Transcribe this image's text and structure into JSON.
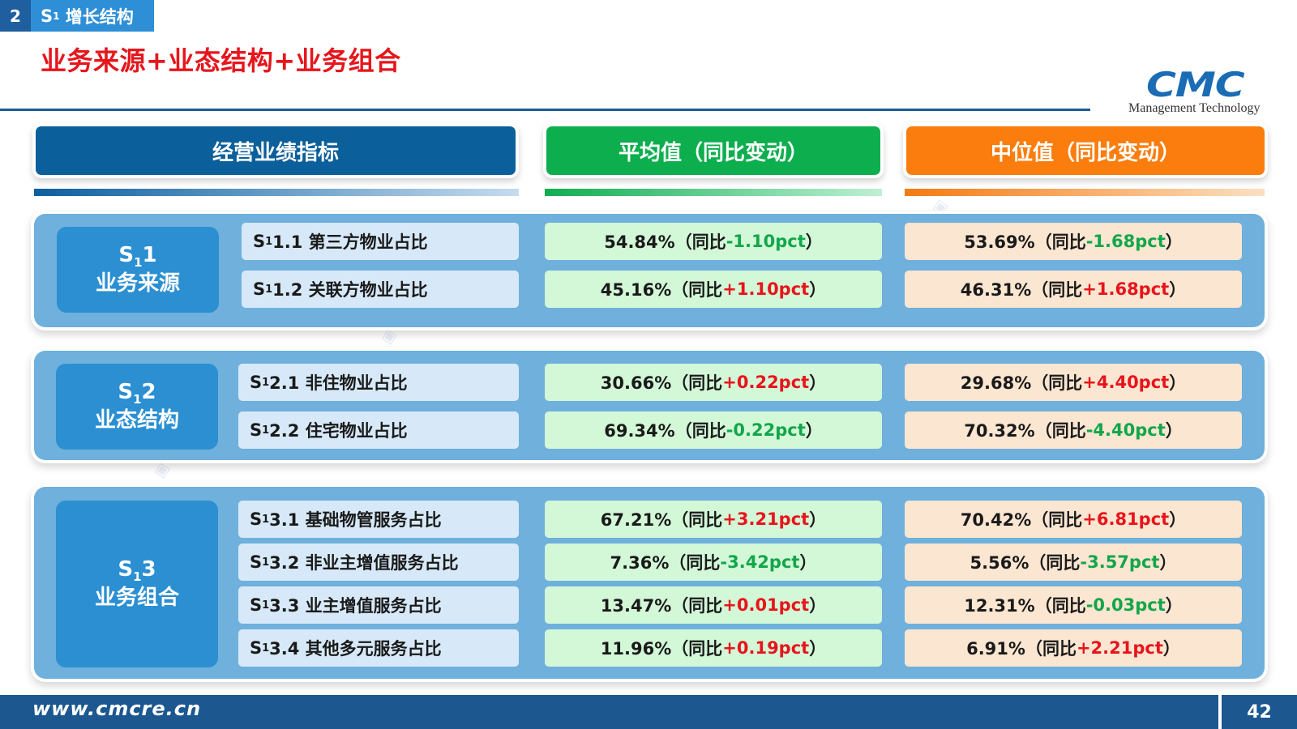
{
  "header": {
    "section_number": "2",
    "section_name_prefix": "S",
    "section_name_sub": "1",
    "section_name_text": " 增长结构",
    "page_title": "业务来源+业态结构+业务组合"
  },
  "logo": {
    "mark": "CMC",
    "subtitle": "Management Technology",
    "color": "#1a6cb5"
  },
  "columns": {
    "indicator": "经营业绩指标",
    "average": "平均值（同比变动）",
    "median": "中位值（同比变动）"
  },
  "groups": [
    {
      "code_prefix": "S",
      "code_sub": "1",
      "code_suffix": "1",
      "name": "业务来源",
      "rows": [
        {
          "code_prefix": "S",
          "code_sub": "1",
          "label": "1.1 第三方物业占比",
          "avg_value": "54.84%（同比",
          "avg_change": "-1.10pct",
          "avg_close": "）",
          "med_value": "53.69%（同比",
          "med_change": "-1.68pct",
          "med_close": "）"
        },
        {
          "code_prefix": "S",
          "code_sub": "1",
          "label": "1.2 关联方物业占比",
          "avg_value": "45.16%（同比",
          "avg_change": "+1.10pct",
          "avg_close": "）",
          "med_value": "46.31%（同比",
          "med_change": "+1.68pct",
          "med_close": "）"
        }
      ]
    },
    {
      "code_prefix": "S",
      "code_sub": "1",
      "code_suffix": "2",
      "name": "业态结构",
      "rows": [
        {
          "code_prefix": "S",
          "code_sub": "1",
          "label": "2.1 非住物业占比",
          "avg_value": "30.66%（同比",
          "avg_change": "+0.22pct",
          "avg_close": "）",
          "med_value": "29.68%（同比",
          "med_change": "+4.40pct",
          "med_close": "）"
        },
        {
          "code_prefix": "S",
          "code_sub": "1",
          "label": "2.2 住宅物业占比",
          "avg_value": "69.34%（同比",
          "avg_change": "-0.22pct",
          "avg_close": "）",
          "med_value": "70.32%（同比",
          "med_change": "-4.40pct",
          "med_close": "）"
        }
      ]
    },
    {
      "code_prefix": "S",
      "code_sub": "1",
      "code_suffix": "3",
      "name": "业务组合",
      "rows": [
        {
          "code_prefix": "S",
          "code_sub": "1",
          "label": "3.1 基础物管服务占比",
          "avg_value": "67.21%（同比",
          "avg_change": "+3.21pct",
          "avg_close": "）",
          "med_value": "70.42%（同比",
          "med_change": "+6.81pct",
          "med_close": "）"
        },
        {
          "code_prefix": "S",
          "code_sub": "1",
          "label": "3.2 非业主增值服务占比",
          "avg_value": "7.36%（同比",
          "avg_change": "-3.42pct",
          "avg_close": "）",
          "med_value": "5.56%（同比",
          "med_change": "-3.57pct",
          "med_close": "）"
        },
        {
          "code_prefix": "S",
          "code_sub": "1",
          "label": "3.3 业主增值服务占比",
          "avg_value": "13.47%（同比",
          "avg_change": "+0.01pct",
          "avg_close": "）",
          "med_value": "12.31%（同比",
          "med_change": "-0.03pct",
          "med_close": "）"
        },
        {
          "code_prefix": "S",
          "code_sub": "1",
          "label": "3.4 其他多元服务占比",
          "avg_value": "11.96%（同比",
          "avg_change": "+0.19pct",
          "avg_close": "）",
          "med_value": "6.91%（同比",
          "med_change": "+2.21pct",
          "med_close": "）"
        }
      ]
    }
  ],
  "colors": {
    "title_red": "#e6161c",
    "indicator_header": "#0b5f9a",
    "average_header": "#0dae4e",
    "median_header": "#fb7d0e",
    "negative_change": "#12a64a",
    "positive_change": "#e8141b"
  },
  "footer": {
    "url": "www.cmcre.cn",
    "page_number": "42"
  }
}
